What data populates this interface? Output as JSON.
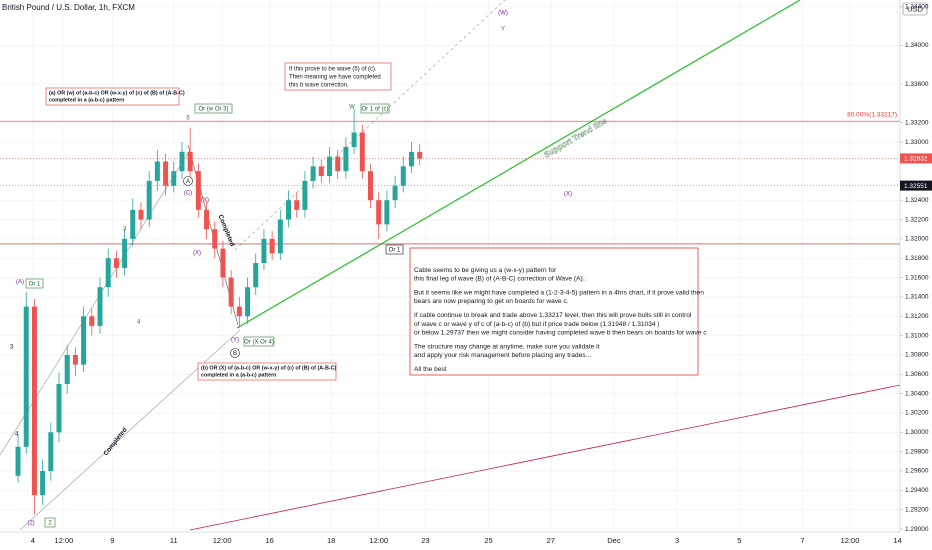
{
  "chart_data": {
    "type": "candlestick",
    "title": "British Pound / U.S. Dollar, 1h, FXCM",
    "currency": "USD",
    "fib_label": "80.00%(1.33217)",
    "trend_label": "Support Trend line",
    "completed_label": "Completed",
    "up_color": "#26a69a",
    "down_color": "#ef5350",
    "open": [
      1.2955,
      1.2985,
      1.313,
      1.2935,
      1.296,
      1.3,
      1.305,
      1.308,
      1.307,
      1.312,
      1.311,
      1.315,
      1.318,
      1.317,
      1.32,
      1.323,
      1.322,
      1.326,
      1.328,
      1.3255,
      1.327,
      1.329,
      1.327,
      1.323,
      1.321,
      1.319,
      1.316,
      1.313,
      1.312,
      1.315,
      1.3175,
      1.32,
      1.3185,
      1.322,
      1.324,
      1.323,
      1.326,
      1.3275,
      1.3265,
      1.3285,
      1.327,
      1.3295,
      1.331,
      1.327,
      1.324,
      1.3215,
      1.324,
      1.3255,
      1.3275,
      1.329
    ],
    "high": [
      1.2998,
      1.3145,
      1.3138,
      1.2972,
      1.301,
      1.3062,
      1.309,
      1.3088,
      1.313,
      1.3128,
      1.316,
      1.319,
      1.3188,
      1.321,
      1.3242,
      1.3238,
      1.327,
      1.3292,
      1.3288,
      1.328,
      1.33,
      1.3315,
      1.3278,
      1.324,
      1.3218,
      1.3198,
      1.3168,
      1.314,
      1.316,
      1.3185,
      1.321,
      1.3208,
      1.323,
      1.325,
      1.3248,
      1.327,
      1.3285,
      1.3282,
      1.3295,
      1.3292,
      1.3305,
      1.3335,
      1.3318,
      1.3278,
      1.3248,
      1.325,
      1.3265,
      1.3285,
      1.33,
      1.3298
    ],
    "low": [
      1.2948,
      1.2978,
      1.2915,
      1.2925,
      1.295,
      1.299,
      1.304,
      1.3058,
      1.3062,
      1.31,
      1.3102,
      1.314,
      1.316,
      1.3162,
      1.3192,
      1.321,
      1.3212,
      1.325,
      1.3245,
      1.3248,
      1.3262,
      1.3262,
      1.3222,
      1.32,
      1.318,
      1.315,
      1.3122,
      1.3108,
      1.3112,
      1.3142,
      1.3168,
      1.3178,
      1.3178,
      1.3212,
      1.3222,
      1.3222,
      1.3252,
      1.3258,
      1.3258,
      1.3262,
      1.3262,
      1.3288,
      1.3262,
      1.3232,
      1.32,
      1.3208,
      1.3232,
      1.3248,
      1.3268,
      1.3276
    ],
    "close": [
      1.2985,
      1.313,
      1.2935,
      1.296,
      1.3,
      1.305,
      1.308,
      1.307,
      1.312,
      1.311,
      1.315,
      1.318,
      1.317,
      1.32,
      1.323,
      1.322,
      1.326,
      1.328,
      1.3255,
      1.327,
      1.329,
      1.327,
      1.323,
      1.321,
      1.319,
      1.316,
      1.313,
      1.312,
      1.315,
      1.3175,
      1.32,
      1.3185,
      1.322,
      1.324,
      1.323,
      1.326,
      1.3275,
      1.3265,
      1.3285,
      1.327,
      1.3295,
      1.331,
      1.327,
      1.324,
      1.3215,
      1.324,
      1.3255,
      1.3275,
      1.329,
      1.3283
    ],
    "xlim": [
      -2.2,
      107.6
    ],
    "xticks": [
      {
        "value": 1.8,
        "label": "4"
      },
      {
        "value": 5.6,
        "label": "12:00"
      },
      {
        "value": 11.5,
        "label": "9"
      },
      {
        "value": 19,
        "label": "11"
      },
      {
        "value": 24.9,
        "label": "12:00"
      },
      {
        "value": 30.7,
        "label": "16"
      },
      {
        "value": 38.2,
        "label": "18"
      },
      {
        "value": 44,
        "label": "12:00"
      },
      {
        "value": 49.7,
        "label": "23"
      },
      {
        "value": 57.4,
        "label": "25"
      },
      {
        "value": 65,
        "label": "27"
      },
      {
        "value": 72.7,
        "label": "Dec"
      },
      {
        "value": 80.4,
        "label": "3"
      },
      {
        "value": 88,
        "label": "5"
      },
      {
        "value": 95.7,
        "label": "7"
      },
      {
        "value": 101.5,
        "label": "12:00"
      },
      {
        "value": 107.3,
        "label": "14"
      }
    ],
    "ylim": [
      1.2899,
      1.3447
    ],
    "yticks": [
      {
        "value": 1.344,
        "label": "1.34400"
      },
      {
        "value": 1.34,
        "label": "1.34000"
      },
      {
        "value": 1.336,
        "label": "1.33600"
      },
      {
        "value": 1.332,
        "label": "1.33200"
      },
      {
        "value": 1.33,
        "label": "1.33000"
      },
      {
        "value": 1.324,
        "label": "1.32400"
      },
      {
        "value": 1.322,
        "label": "1.32200"
      },
      {
        "value": 1.32,
        "label": "1.32000"
      },
      {
        "value": 1.318,
        "label": "1.31800"
      },
      {
        "value": 1.316,
        "label": "1.31600"
      },
      {
        "value": 1.314,
        "label": "1.31400"
      },
      {
        "value": 1.312,
        "label": "1.31200"
      },
      {
        "value": 1.31,
        "label": "1.31000"
      },
      {
        "value": 1.308,
        "label": "1.30800"
      },
      {
        "value": 1.306,
        "label": "1.30600"
      },
      {
        "value": 1.304,
        "label": "1.30400"
      },
      {
        "value": 1.302,
        "label": "1.30200"
      },
      {
        "value": 1.3,
        "label": "1.30000"
      },
      {
        "value": 1.298,
        "label": "1.29800"
      },
      {
        "value": 1.296,
        "label": "1.29600"
      },
      {
        "value": 1.294,
        "label": "1.29400"
      },
      {
        "value": 1.292,
        "label": "1.29200"
      },
      {
        "value": 1.29,
        "label": "1.29000"
      }
    ],
    "grid": true,
    "levels": [
      {
        "value": 1.33217,
        "color": "#e53935"
      },
      {
        "value": 1.31948,
        "color": "#b71c1c"
      },
      {
        "value": 1.32832,
        "color": "#ef5350"
      },
      {
        "value": 1.32551,
        "color": "#9598a1"
      }
    ],
    "price_labels": [
      {
        "value": 1.32832,
        "color": "#ef5350"
      },
      {
        "value": 1.32551,
        "color": "#131722"
      }
    ],
    "annotations": [
      [
        "(a) OR (w) of (a-b-c) OR (w-x-y) of (c) of (B) of (A-B-C)",
        "completed in a (a-b-c) pattern"
      ],
      [
        "If this prove to be wave (5) of (c).",
        "Then meaning we have completed",
        "this b wave correction."
      ],
      [
        "(b) OR (X)  of (a-b-c) OR (w-x-y) of (c) of (B) of (A-B-C)",
        "completed in a (a-b-c) pattern"
      ]
    ],
    "note": [
      "Cable seems to be giving us a (w-x-y) pattern for",
      "this final leg of wave (B) of (A-B-C) correction of Wave (A)..",
      "But it seems like we might have completed a (1-2-3-4-5) pattern in a 4hrs chart, if it prove valid then",
      "bears are now preparing to get on boards for wave c.",
      "If cable continue to break and trade above 1.33217 level, then this will prove bulls still in control",
      "of wave c or wave y of c of (a-b-c) of (b) but if price trade below (1.31948 / 1.31034 )",
      "or below 1.29737 then we might consider having completed wave b then bears on boards for wave c",
      "The structure may change at anytime, make sure you  validate it",
      "and apply your risk management before placing any trades...",
      "All the best"
    ],
    "wave_labels": [
      "(A)",
      "Or 1",
      "3",
      "4",
      "A",
      "(C)",
      "5",
      "Or  (w Or 3)",
      "(Y)",
      "(X)",
      "Or  (X Or 4)",
      "B",
      "W",
      "Or 1 of (c)",
      "(W)",
      "Y",
      "(2)",
      "2"
    ]
  }
}
